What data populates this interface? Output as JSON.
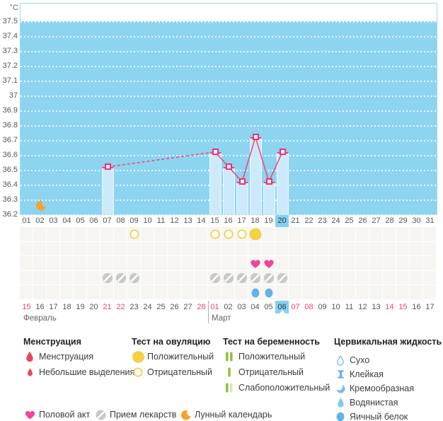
{
  "unit": "°C",
  "colors": {
    "plot_background": "#8dd4f0",
    "bar_fill": "#cdeafa",
    "temperature_line": "#f0437c",
    "selected_day_highlight": "#82d2f2",
    "weekend_date": "#f43f6d",
    "ovulation_yellow": "#f6d33c",
    "pregnancy_green": "#95c13d",
    "cervical_blue": "#74bde8",
    "intercourse_pink": "#f0449d",
    "medication_gray": "#c8c8c8",
    "lunar_orange": "#f6a32c",
    "menstruation_red": "#e9455b"
  },
  "chart_data": {
    "type": "line",
    "ylabel": "°C",
    "ylim": [
      36.2,
      37.5
    ],
    "yticks": [
      "37.5",
      "37.4",
      "37.3",
      "37.2",
      "37.1",
      "37",
      "36.9",
      "36.8",
      "36.7",
      "36.6",
      "36.5",
      "36.4",
      "36.3",
      "36.2"
    ],
    "x_categories": [
      "01",
      "02",
      "03",
      "04",
      "05",
      "06",
      "07",
      "08",
      "09",
      "10",
      "11",
      "12",
      "13",
      "14",
      "15",
      "16",
      "17",
      "18",
      "19",
      "20",
      "21",
      "22",
      "23",
      "24",
      "25",
      "26",
      "27",
      "28",
      "29",
      "30",
      "31"
    ],
    "selected_day": "20",
    "grid": "horizontal-dotted",
    "legend_position": "bottom",
    "series": [
      {
        "name": "basal-temperature",
        "points": [
          {
            "day": 7,
            "temp": 36.52
          },
          {
            "day": 15,
            "temp": 36.62
          },
          {
            "day": 16,
            "temp": 36.52
          },
          {
            "day": 17,
            "temp": 36.42
          },
          {
            "day": 18,
            "temp": 36.72
          },
          {
            "day": 19,
            "temp": 36.42
          },
          {
            "day": 20,
            "temp": 36.62
          }
        ],
        "dashed_gap_between_days": [
          7,
          15
        ]
      }
    ],
    "moon_marker_day": 2
  },
  "icon_rows": {
    "ovulation_test": [
      {
        "day": 9,
        "result": "negative"
      },
      {
        "day": 15,
        "result": "negative"
      },
      {
        "day": 16,
        "result": "negative"
      },
      {
        "day": 17,
        "result": "negative"
      },
      {
        "day": 18,
        "result": "positive"
      }
    ],
    "pregnancy_test": [],
    "intercourse_days": [
      18,
      19
    ],
    "medication_days": [
      7,
      8,
      9,
      15,
      16,
      17,
      18,
      19,
      20
    ],
    "cervical_fluid": [
      {
        "day": 18,
        "type": "egg-white"
      },
      {
        "day": 19,
        "type": "egg-white"
      }
    ]
  },
  "calendar": {
    "months": [
      {
        "name": "Февраль",
        "days": [
          "15",
          "16",
          "17",
          "18",
          "19",
          "20",
          "21",
          "22",
          "23",
          "24",
          "25",
          "26",
          "27",
          "28"
        ],
        "red_days": [
          "15",
          "21",
          "22",
          "28"
        ],
        "selected": null
      },
      {
        "name": "Март",
        "days": [
          "01",
          "02",
          "03",
          "04",
          "05",
          "06",
          "07",
          "08",
          "09",
          "10",
          "11",
          "12",
          "13",
          "14",
          "15",
          "16",
          "17"
        ],
        "red_days": [
          "01",
          "07",
          "08",
          "14",
          "15"
        ],
        "selected": "06"
      }
    ]
  },
  "legend": {
    "sections": [
      {
        "title": "Менструация",
        "items": [
          {
            "icon": "menstruation-drop",
            "label": "Менструация"
          },
          {
            "icon": "spotting-drop",
            "label": "Небольшие выделения"
          }
        ]
      },
      {
        "title": "Тест на овуляцию",
        "items": [
          {
            "icon": "ovulation-positive",
            "label": "Положительный"
          },
          {
            "icon": "ovulation-negative",
            "label": "Отрицательный"
          }
        ]
      },
      {
        "title": "Тест на беременность",
        "items": [
          {
            "icon": "pregnancy-positive",
            "label": "Положительный"
          },
          {
            "icon": "pregnancy-negative",
            "label": "Отрицательный"
          },
          {
            "icon": "pregnancy-weak",
            "label": "Слабоположительный"
          }
        ]
      },
      {
        "title": "Цервикальная жидкость",
        "items": [
          {
            "icon": "fluid-dry",
            "label": "Сухо"
          },
          {
            "icon": "fluid-sticky",
            "label": "Клейкая"
          },
          {
            "icon": "fluid-creamy",
            "label": "Кремообразная"
          },
          {
            "icon": "fluid-watery",
            "label": "Водянистая"
          },
          {
            "icon": "fluid-eggwhite",
            "label": "Яичный белок"
          }
        ]
      }
    ],
    "extra_items": [
      {
        "icon": "intercourse-heart",
        "label": "Половой акт"
      },
      {
        "icon": "medication-pill",
        "label": "Прием лекарств"
      },
      {
        "icon": "lunar-moon",
        "label": "Лунный календарь"
      }
    ]
  }
}
